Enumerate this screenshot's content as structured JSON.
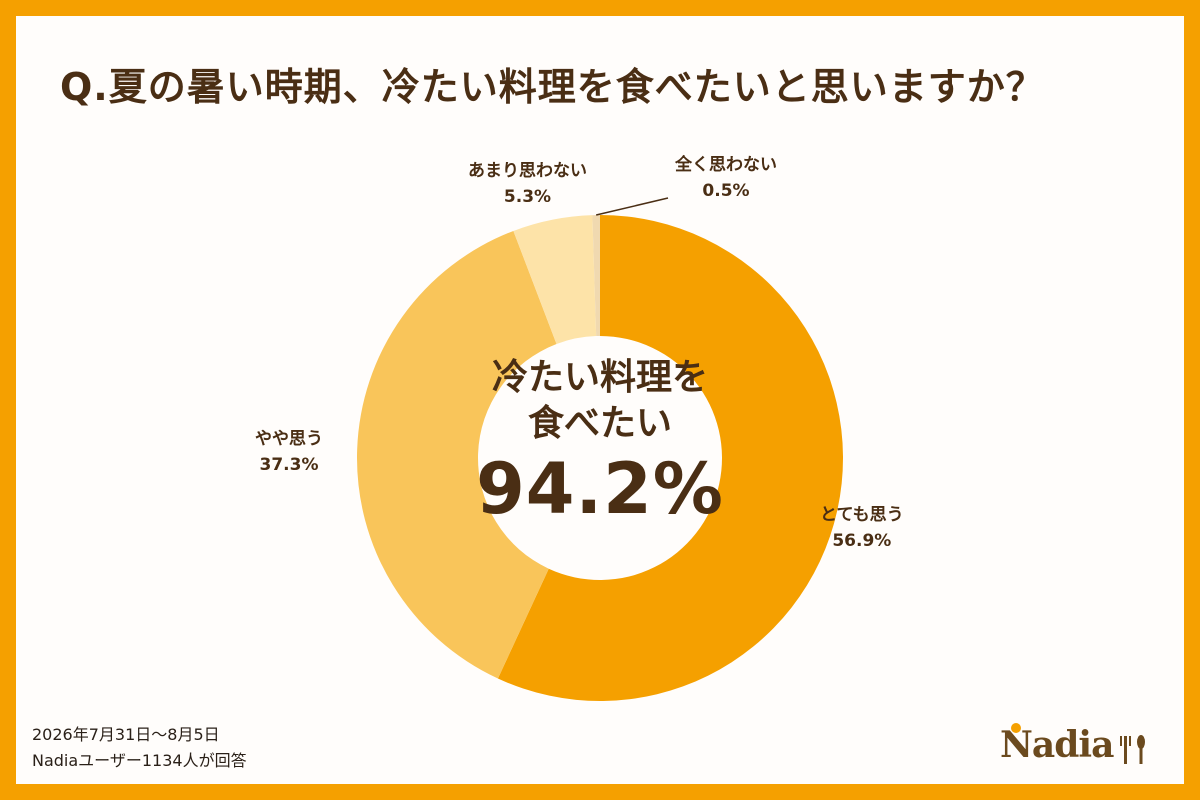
{
  "title": "Q.夏の暑い時期、冷たい料理を食べたいと思いますか？",
  "center": {
    "line1": "冷たい料理を",
    "line2": "食べたい",
    "value": "94.2%"
  },
  "footer": {
    "date": "2026年7月31日〜8月5日",
    "respondents": "Nadiaユーザー1134人が回答"
  },
  "logo": {
    "text": "Nadia"
  },
  "colors": {
    "border": "#f5a000",
    "slice_1": "#f5a000",
    "slice_2": "#f9c55a",
    "slice_3": "#fde3a8",
    "slice_4": "#f0d9b0",
    "text": "#4a2e14"
  },
  "chart_data": {
    "type": "pie",
    "donut": true,
    "categories": [
      "とても思う",
      "やや思う",
      "あまり思わない",
      "全く思わない"
    ],
    "values": [
      56.9,
      37.3,
      5.3,
      0.5
    ],
    "value_labels": [
      "56.9%",
      "37.3%",
      "5.3%",
      "0.5%"
    ],
    "start": "12 o'clock",
    "direction": "clockwise"
  }
}
